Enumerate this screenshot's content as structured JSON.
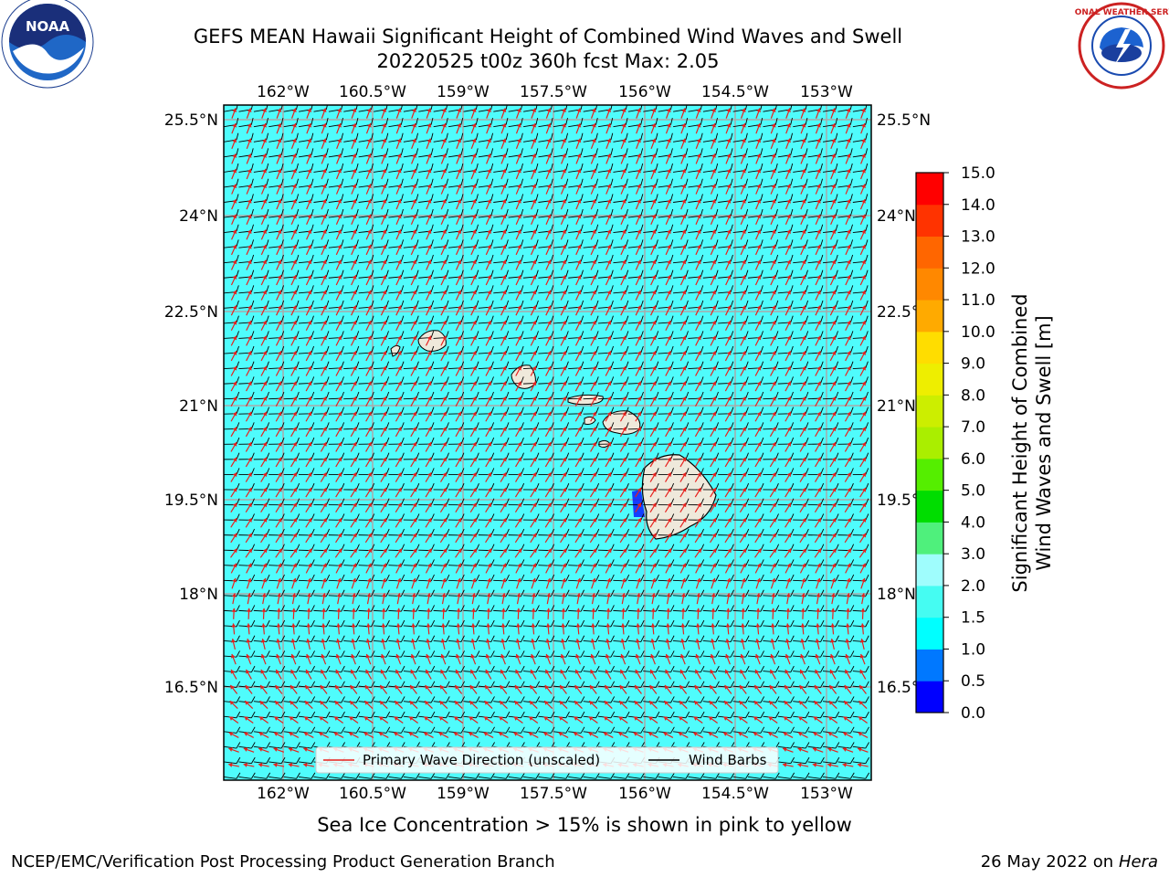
{
  "title": {
    "line1": "GEFS MEAN Hawaii Significant Height of Combined Wind Waves and Swell",
    "line2": "20220525 t00z 360h fcst   Max: 2.05"
  },
  "map": {
    "lon_ticks": [
      "162°W",
      "160.5°W",
      "159°W",
      "157.5°W",
      "156°W",
      "154.5°W",
      "153°W"
    ],
    "lat_ticks": [
      "25.5°N",
      "24°N",
      "22.5°N",
      "21°N",
      "19.5°N",
      "18°N",
      "16.5°N"
    ],
    "ocean_color": "#4ffcfc",
    "land_color": "#efe9db",
    "wave_arrow_color": "#e8201c",
    "barb_color": "#000000",
    "legend": {
      "wave": "Primary Wave Direction (unscaled)",
      "barbs": "Wind Barbs"
    }
  },
  "colorbar": {
    "label_line1": "Significant Height of Combined",
    "label_line2": "Wind Waves and Swell [m]",
    "ticks": [
      "0.0",
      "0.5",
      "1.0",
      "1.5",
      "2.0",
      "3.0",
      "4.0",
      "5.0",
      "6.0",
      "7.0",
      "8.0",
      "9.0",
      "10.0",
      "11.0",
      "12.0",
      "13.0",
      "14.0",
      "15.0"
    ],
    "colors": [
      "#0000ff",
      "#0078ff",
      "#00ffff",
      "#45fcf2",
      "#9ffdfd",
      "#4ff07c",
      "#00dd00",
      "#55ee00",
      "#aaee00",
      "#ccee00",
      "#eeee00",
      "#ffdd00",
      "#ffaa00",
      "#ff8800",
      "#ff6600",
      "#ff3300",
      "#ff0000"
    ]
  },
  "logos": {
    "noaa_text": "NOAA",
    "nws_text": "NATIONAL WEATHER SERVICE"
  },
  "footer": {
    "note": "Sea Ice Concentration > 15% is shown in pink to yellow",
    "credit": "NCEP/EMC/Verification Post Processing Product Generation Branch",
    "date": "26 May 2022 on",
    "machine": "Hera"
  }
}
